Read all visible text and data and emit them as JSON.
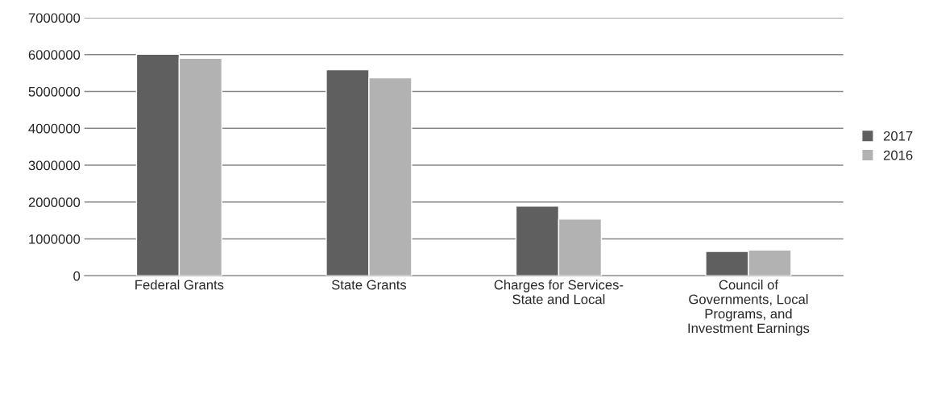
{
  "chart_data": {
    "type": "bar",
    "categories": [
      "Federal Grants",
      "State Grants",
      "Charges for Services-\nState and Local",
      "Council of\nGovernments, Local\nPrograms, and\nInvestment Earnings"
    ],
    "series": [
      {
        "name": "2017",
        "color": "#5f5f5f",
        "values": [
          6010000,
          5590000,
          1890000,
          660000
        ]
      },
      {
        "name": "2016",
        "color": "#b2b2b2",
        "values": [
          5900000,
          5370000,
          1540000,
          700000
        ]
      }
    ],
    "ylim": [
      0,
      7000000
    ],
    "yticks": [
      0,
      1000000,
      2000000,
      3000000,
      4000000,
      5000000,
      6000000,
      7000000
    ],
    "grid": "y",
    "legend": "right"
  }
}
